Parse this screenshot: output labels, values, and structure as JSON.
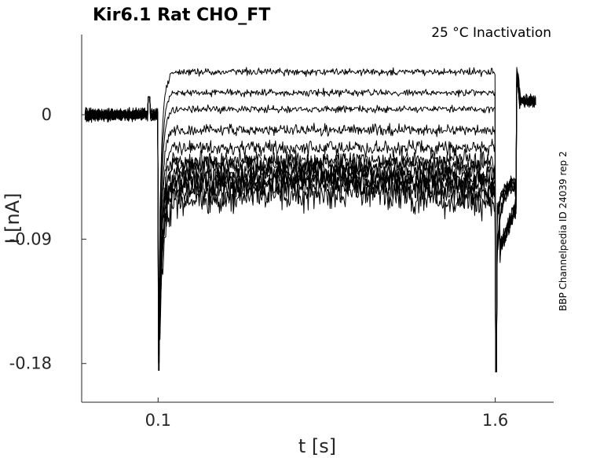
{
  "chart_data": {
    "type": "line",
    "title": "Kir6.1  Rat  CHO_FT",
    "subtitle": "25 °C  Inactivation",
    "side_note": "BBP Channelpedia ID 24039 rep 2",
    "xlabel": "t [s]",
    "ylabel": "I [nA]",
    "xlim": [
      -0.24,
      1.86
    ],
    "ylim": [
      -0.208,
      0.058
    ],
    "x_ticks": [
      0.1,
      1.6
    ],
    "x_tick_labels": [
      "0.1",
      "1.6"
    ],
    "y_ticks": [
      0,
      -0.09,
      -0.18
    ],
    "y_tick_labels": [
      "0",
      "-0.09",
      "-0.18"
    ],
    "grid": false,
    "legend": "none",
    "sweep_count": 13,
    "step_on": 0.1,
    "step_off": 1.6,
    "series_step_levels": [
      0.031,
      0.016,
      0.004,
      -0.011,
      -0.024,
      -0.034,
      -0.038,
      -0.043,
      -0.047,
      -0.051,
      -0.054,
      -0.059,
      -0.066
    ],
    "series_tail_levels": [
      -0.048,
      -0.049,
      -0.05,
      -0.051,
      -0.052,
      -0.05,
      -0.049,
      -0.053,
      -0.051,
      -0.05,
      -0.052,
      -0.049,
      -0.05
    ],
    "baseline_level": 0,
    "tail_after_recovery": 0.01,
    "onset_peak": -0.185,
    "offset_peak": -0.186,
    "trace_color": "#000000"
  }
}
